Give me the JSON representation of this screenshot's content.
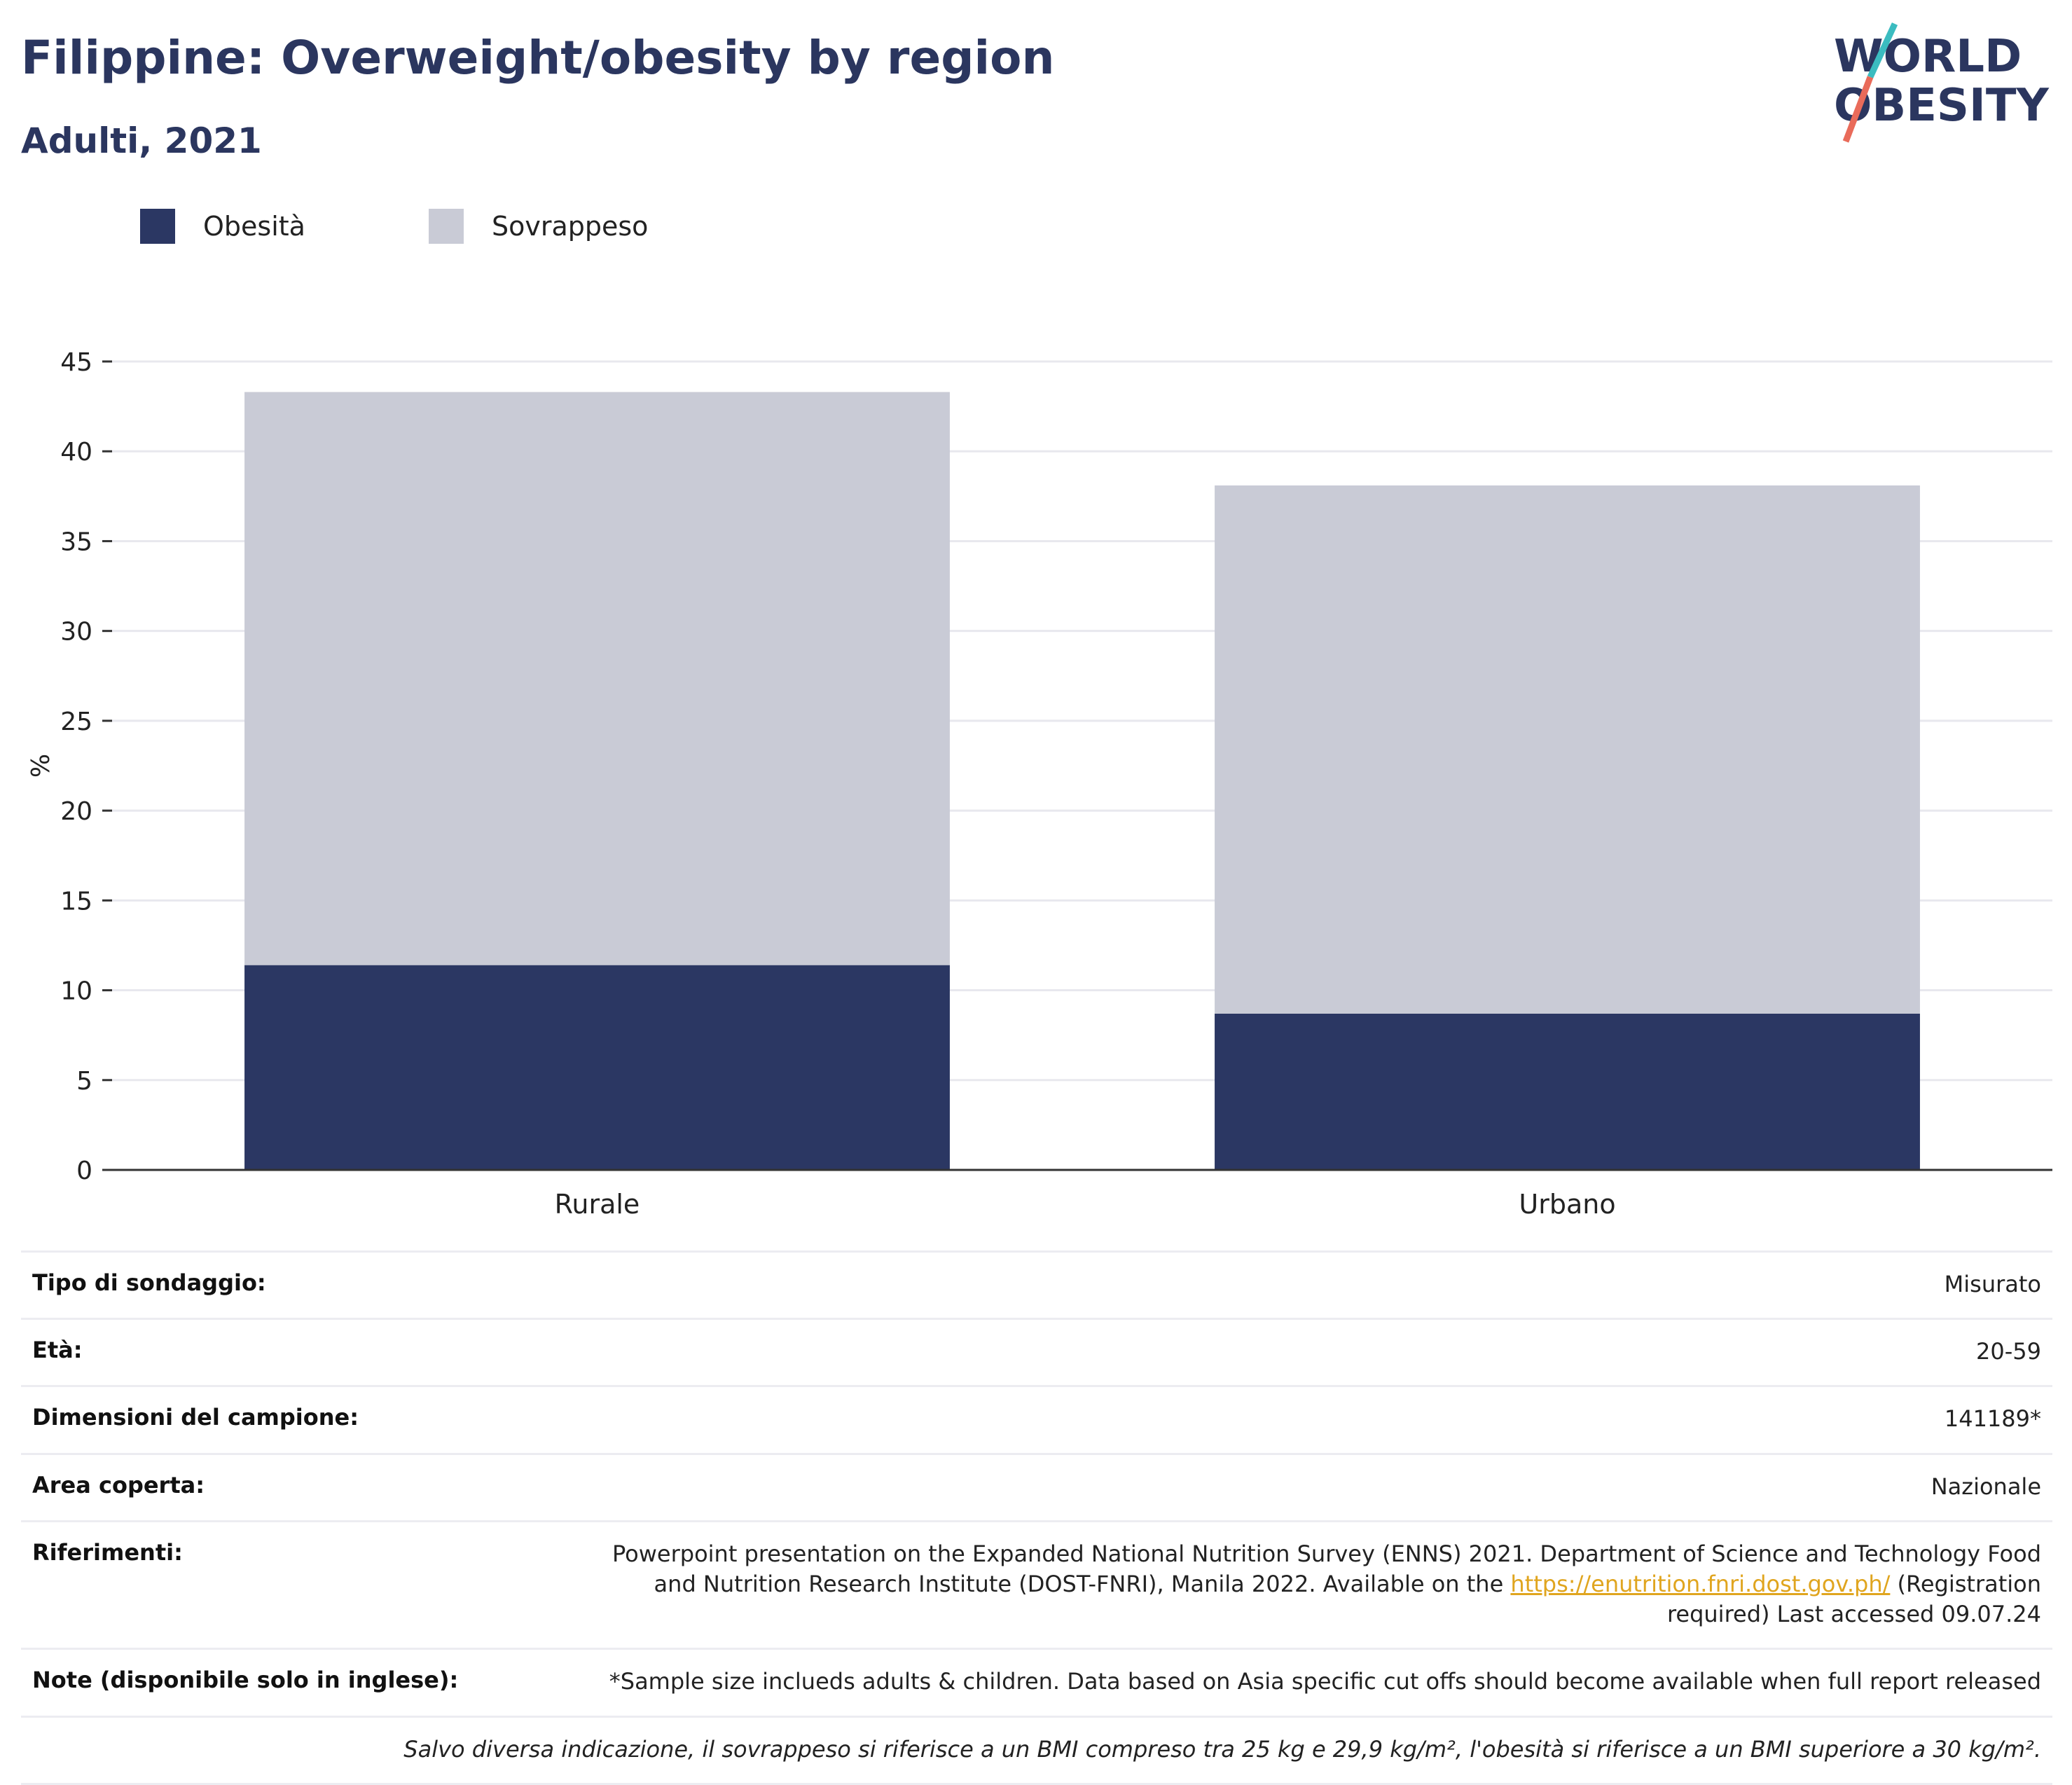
{
  "header": {
    "title": "Filippine: Overweight/obesity by region",
    "subtitle": "Adulti, 2021"
  },
  "logo": {
    "line1": "WORLD",
    "line2": "OBESITY"
  },
  "colors": {
    "obesity": "#2b3763",
    "overweight": "#c9cbd6",
    "brand_teal": "#3bbcc0",
    "brand_coral": "#e96b5a",
    "brand_navy": "#2b365f"
  },
  "legend": [
    {
      "label": "Obesità",
      "color": "#2b3763"
    },
    {
      "label": "Sovrappeso",
      "color": "#c9cbd6"
    }
  ],
  "chart_data": {
    "type": "bar",
    "stacked": true,
    "categories": [
      "Rurale",
      "Urbano"
    ],
    "series": [
      {
        "name": "Obesità",
        "values": [
          11.4,
          8.7
        ]
      },
      {
        "name": "Sovrappeso",
        "values": [
          31.9,
          29.4
        ]
      }
    ],
    "ylabel": "%",
    "ylim": [
      0,
      45
    ],
    "yticks": [
      0,
      5,
      10,
      15,
      20,
      25,
      30,
      35,
      40,
      45
    ],
    "grid": true,
    "legend_position": "top-left"
  },
  "info": {
    "survey_type": {
      "label": "Tipo di sondaggio:",
      "value": "Misurato"
    },
    "age": {
      "label": "Età:",
      "value": "20-59"
    },
    "sample_size": {
      "label": "Dimensioni del campione:",
      "value": "141189*"
    },
    "area": {
      "label": "Area coperta:",
      "value": "Nazionale"
    },
    "references": {
      "label": "Riferimenti:",
      "text_before": "Powerpoint presentation on the Expanded National Nutrition Survey (ENNS) 2021. Department of Science and Technology Food and Nutrition Research Institute (DOST-FNRI), Manila 2022. Available on the ",
      "link": "https://enutrition.fnri.dost.gov.ph/",
      "text_after": " (Registration required) Last accessed 09.07.24"
    },
    "notes": {
      "label": "Note (disponibile solo in inglese):",
      "value": "*Sample size inclueds adults & children. Data based on Asia specific cut offs should become available when full report released"
    },
    "footnote": "Salvo diversa indicazione, il sovrappeso si riferisce a un BMI compreso tra 25 kg e 29,9 kg/m², l'obesità si riferisce a un BMI superiore a 30 kg/m²."
  }
}
